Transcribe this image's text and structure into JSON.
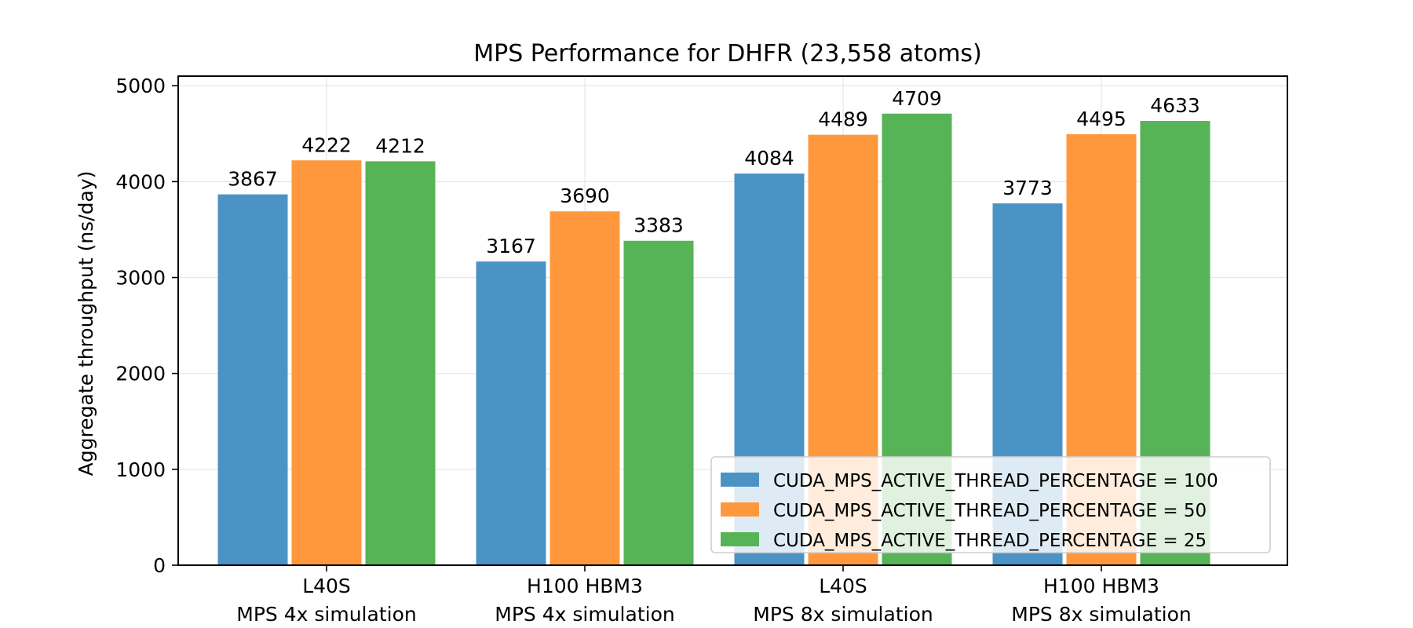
{
  "chart_data": {
    "type": "bar",
    "title": "MPS Performance for DHFR (23,558 atoms)",
    "xlabel": "",
    "ylabel": "Aggregate throughput (ns/day)",
    "ylim": [
      0,
      5100
    ],
    "yticks": [
      0,
      1000,
      2000,
      3000,
      4000,
      5000
    ],
    "grid": true,
    "legend_position": "lower-right",
    "categories": [
      [
        "L40S",
        "MPS 4x simulation"
      ],
      [
        "H100 HBM3",
        "MPS 4x simulation"
      ],
      [
        "L40S",
        "MPS 8x simulation"
      ],
      [
        "H100 HBM3",
        "MPS 8x simulation"
      ]
    ],
    "series": [
      {
        "name": "CUDA_MPS_ACTIVE_THREAD_PERCENTAGE = 100",
        "color": "#4c93c5",
        "values": [
          3867,
          3167,
          4084,
          3773
        ]
      },
      {
        "name": "CUDA_MPS_ACTIVE_THREAD_PERCENTAGE = 50",
        "color": "#ff983d",
        "values": [
          4222,
          3690,
          4489,
          4495
        ]
      },
      {
        "name": "CUDA_MPS_ACTIVE_THREAD_PERCENTAGE = 25",
        "color": "#56b356",
        "values": [
          4212,
          3383,
          4709,
          4633
        ]
      }
    ]
  }
}
